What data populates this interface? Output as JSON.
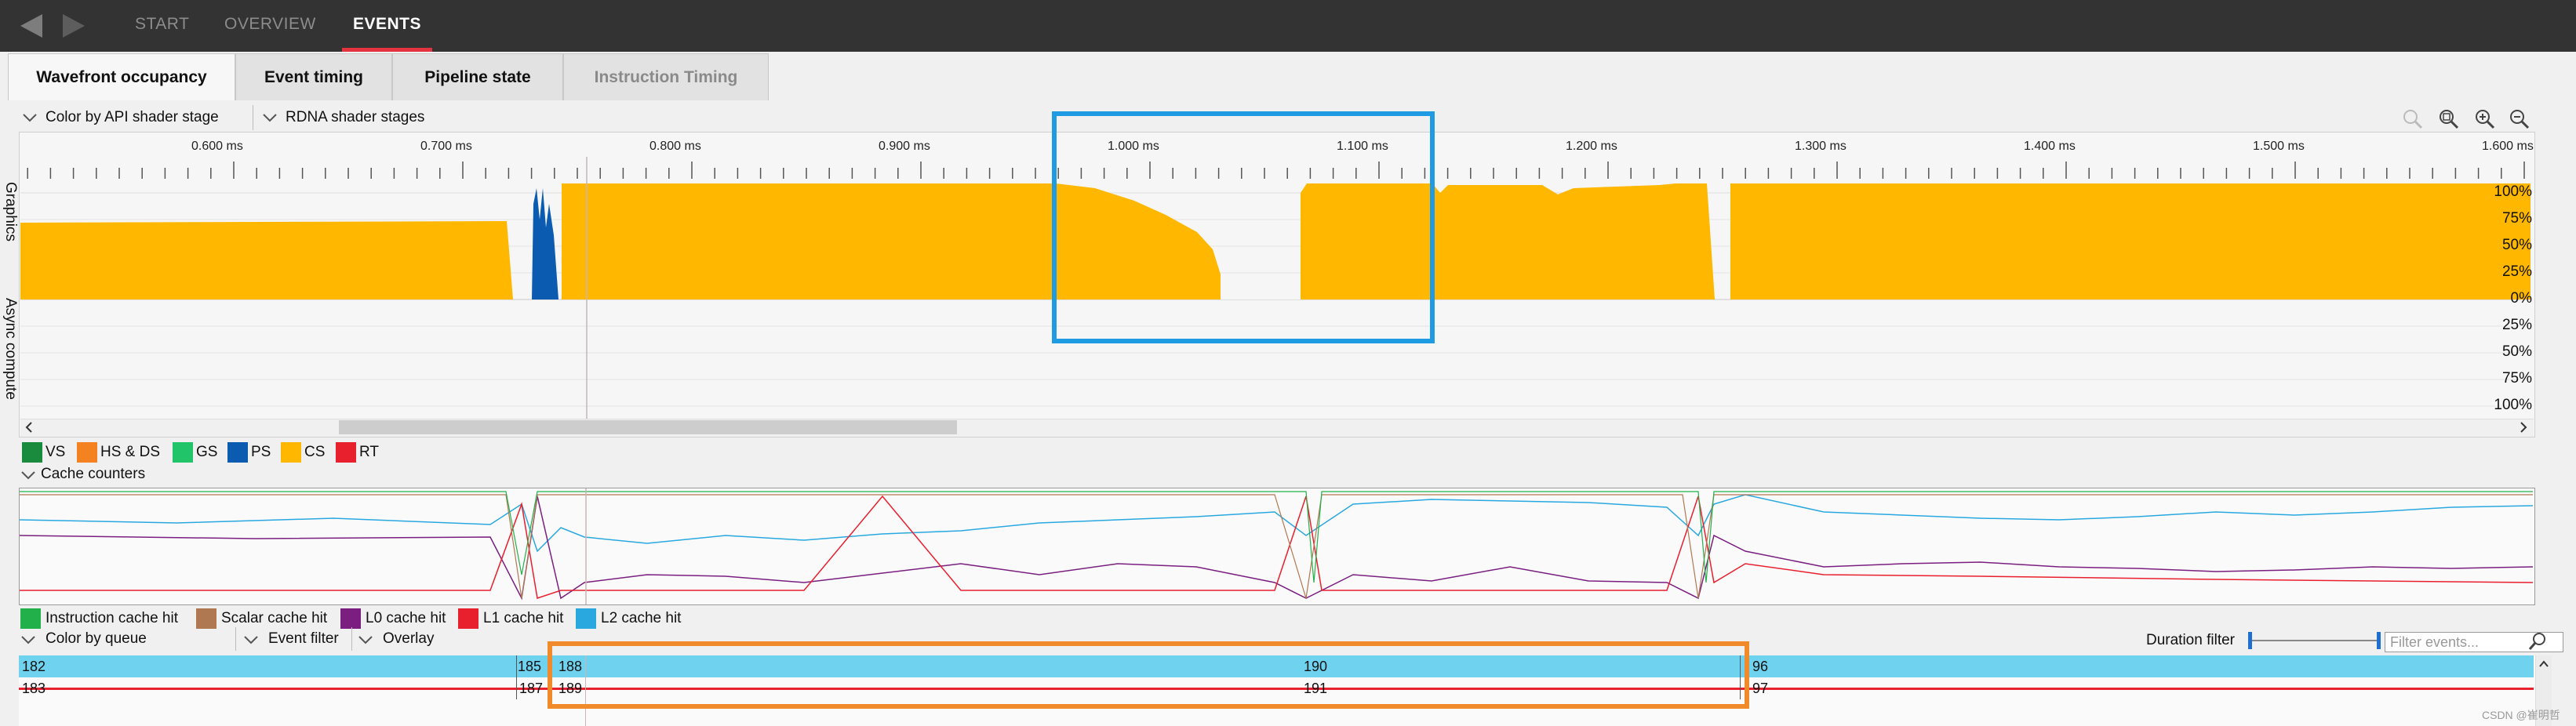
{
  "nav": {
    "tabs": [
      "START",
      "OVERVIEW",
      "EVENTS"
    ],
    "active_tab": "EVENTS"
  },
  "subtabs": [
    {
      "label": "Wavefront occupancy",
      "state": "active"
    },
    {
      "label": "Event timing",
      "state": "normal"
    },
    {
      "label": "Pipeline state",
      "state": "normal"
    },
    {
      "label": "Instruction Timing",
      "state": "disabled"
    }
  ],
  "controls": {
    "color_by": "Color by API shader stage",
    "shader_stages": "RDNA shader stages"
  },
  "timeline": {
    "ticks": [
      "0.600 ms",
      "0.700 ms",
      "0.800 ms",
      "0.900 ms",
      "1.000 ms",
      "1.100 ms",
      "1.200 ms",
      "1.300 ms",
      "1.400 ms",
      "1.500 ms",
      "1.600 ms"
    ],
    "graphics_label": "Graphics",
    "async_label": "Async compute",
    "graphics_percent": [
      "100%",
      "75%",
      "50%",
      "25%",
      "0%"
    ],
    "async_percent": [
      "25%",
      "50%",
      "75%",
      "100%"
    ]
  },
  "shader_legend": [
    {
      "label": "VS",
      "color": "#1a8a3c"
    },
    {
      "label": "HS & DS",
      "color": "#f58220"
    },
    {
      "label": "GS",
      "color": "#22c46a"
    },
    {
      "label": "PS",
      "color": "#0b5cb0"
    },
    {
      "label": "CS",
      "color": "#ffb700"
    },
    {
      "label": "RT",
      "color": "#e8202e"
    }
  ],
  "cache": {
    "header": "Cache counters",
    "legend": [
      {
        "label": "Instruction cache hit",
        "color": "#22b04a"
      },
      {
        "label": "Scalar cache hit",
        "color": "#b07850"
      },
      {
        "label": "L0 cache hit",
        "color": "#7a1f80"
      },
      {
        "label": "L1 cache hit",
        "color": "#e8202e"
      },
      {
        "label": "L2 cache hit",
        "color": "#29a8e0"
      }
    ]
  },
  "events_controls": {
    "color_by_queue": "Color by queue",
    "event_filter": "Event filter",
    "overlay": "Overlay",
    "duration_filter": "Duration filter",
    "filter_placeholder": "Filter events..."
  },
  "event_rows": [
    [
      "182",
      "185",
      "188",
      "190",
      "96"
    ],
    [
      "183",
      "187",
      "189",
      "191",
      "97"
    ]
  ],
  "colors": {
    "cs": "#ffb700",
    "ps": "#0b5cb0",
    "event_row1": "#6fd3ef",
    "event_row2_line": "#e8202e",
    "highlight_blue": "#1e9be3",
    "highlight_orange": "#f08a2a",
    "active_tab_underline": "#e2333f"
  },
  "watermark": "CSDN @崔明哲"
}
